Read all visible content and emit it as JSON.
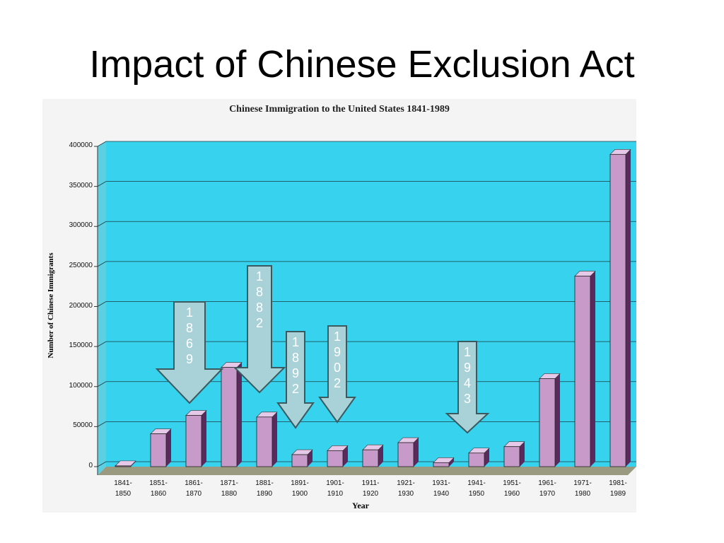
{
  "slide_title": "Impact of Chinese Exclusion Act",
  "chart_data": {
    "type": "bar",
    "title": "Chinese Immigration to the United States 1841-1989",
    "x_label": "Year",
    "y_label": "Number of Chinese Immigrants",
    "categories": [
      "1841-1850",
      "1851-1860",
      "1861-1870",
      "1871-1880",
      "1881-1890",
      "1891-1900",
      "1901-1910",
      "1911-1920",
      "1921-1930",
      "1931-1940",
      "1941-1950",
      "1951-1960",
      "1961-1970",
      "1971-1980",
      "1981-1989"
    ],
    "values": [
      1000,
      41000,
      64000,
      124000,
      62000,
      15000,
      20000,
      21000,
      30000,
      5000,
      17000,
      25000,
      110000,
      238000,
      390000
    ],
    "color": "#c79ac9",
    "ylim": [
      0,
      400000
    ],
    "yticks": [
      0,
      50000,
      100000,
      150000,
      200000,
      250000,
      300000,
      350000,
      400000
    ],
    "grid": true,
    "annotations": [
      "1869",
      "1882",
      "1892",
      "1902",
      "1943"
    ]
  }
}
